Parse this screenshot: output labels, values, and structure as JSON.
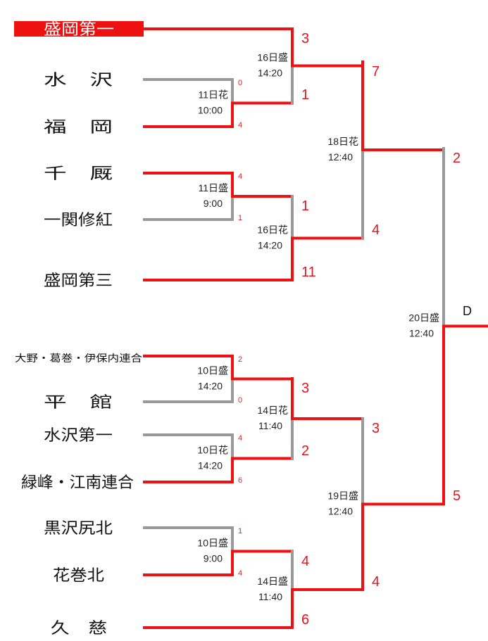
{
  "colors": {
    "win": "#ee1111",
    "lose": "#999999",
    "champion_bg": "#ee1111"
  },
  "teams": [
    {
      "name": "盛岡第一",
      "highlight": true
    },
    {
      "name": "水　沢"
    },
    {
      "name": "福　岡"
    },
    {
      "name": "千　厩"
    },
    {
      "name": "一関修紅"
    },
    {
      "name": "盛岡第三"
    },
    {
      "name": "大野・葛巻・伊保内連合"
    },
    {
      "name": "平　館"
    },
    {
      "name": "水沢第一"
    },
    {
      "name": "緑峰・江南連合"
    },
    {
      "name": "黒沢尻北"
    },
    {
      "name": "花巻北"
    },
    {
      "name": "久　慈"
    }
  ],
  "matches": {
    "r1_a": {
      "day": "11日花",
      "time": "10:00",
      "score_top": "0",
      "score_bottom": "4",
      "winner": "bottom"
    },
    "r1_b": {
      "day": "11日盛",
      "time": "9:00",
      "score_top": "4",
      "score_bottom": "1",
      "winner": "top"
    },
    "r1_c": {
      "day": "10日盛",
      "time": "14:20",
      "score_top": "2",
      "score_bottom": "0",
      "winner": "top"
    },
    "r1_d": {
      "day": "10日花",
      "time": "14:20",
      "score_top": "4",
      "score_bottom": "6",
      "winner": "bottom"
    },
    "r1_e": {
      "day": "10日盛",
      "time": "9:00",
      "score_top": "1",
      "score_bottom": "4",
      "winner": "bottom"
    },
    "r2_a": {
      "day": "16日盛",
      "time": "14:20",
      "score_top": "3",
      "score_bottom": "1",
      "winner": "top"
    },
    "r2_b": {
      "day": "16日花",
      "time": "14:20",
      "score_top": "1",
      "score_bottom": "11",
      "winner": "bottom"
    },
    "r2_c": {
      "day": "14日花",
      "time": "11:40",
      "score_top": "3",
      "score_bottom": "2",
      "winner": "top"
    },
    "r2_d": {
      "day": "14日盛",
      "time": "11:40",
      "score_top": "4",
      "score_bottom": "6",
      "winner": "bottom"
    },
    "r3_a": {
      "day": "18日花",
      "time": "12:40",
      "score_top": "7",
      "score_bottom": "4",
      "winner": "top"
    },
    "r3_b": {
      "day": "19日盛",
      "time": "12:40",
      "score_top": "3",
      "score_bottom": "4",
      "winner": "bottom"
    },
    "final": {
      "day": "20日盛",
      "time": "12:40",
      "score_top": "2",
      "score_bottom": "5",
      "winner": "bottom",
      "block_label": "D"
    }
  }
}
